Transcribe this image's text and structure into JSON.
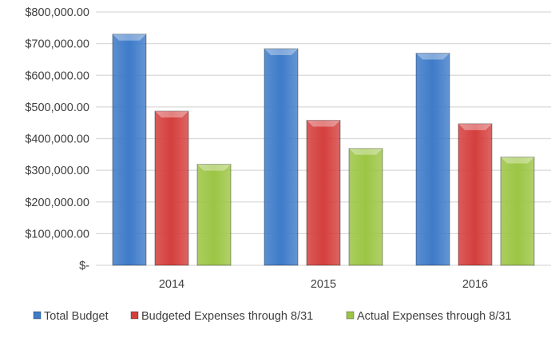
{
  "chart_data": {
    "type": "bar",
    "title": "",
    "xlabel": "",
    "ylabel": "",
    "categories": [
      "2014",
      "2015",
      "2016"
    ],
    "series": [
      {
        "name": "Total Budget",
        "color": "#3e7bc9",
        "values": [
          730000,
          684000,
          670000
        ]
      },
      {
        "name": "Budgeted Expenses through 8/31",
        "color": "#d43f3d",
        "values": [
          487000,
          458000,
          447000
        ]
      },
      {
        "name": "Actual Expenses through 8/31",
        "color": "#9cc544",
        "values": [
          319000,
          369000,
          342000
        ]
      }
    ],
    "ylim": [
      0,
      800000
    ],
    "yticks": [
      0,
      100000,
      200000,
      300000,
      400000,
      500000,
      600000,
      700000,
      800000
    ],
    "ytick_labels": [
      "$-",
      "$100,000.00",
      "$200,000.00",
      "$300,000.00",
      "$400,000.00",
      "$500,000.00",
      "$600,000.00",
      "$700,000.00",
      "$800,000.00"
    ],
    "grid": true,
    "legend_position": "bottom"
  }
}
